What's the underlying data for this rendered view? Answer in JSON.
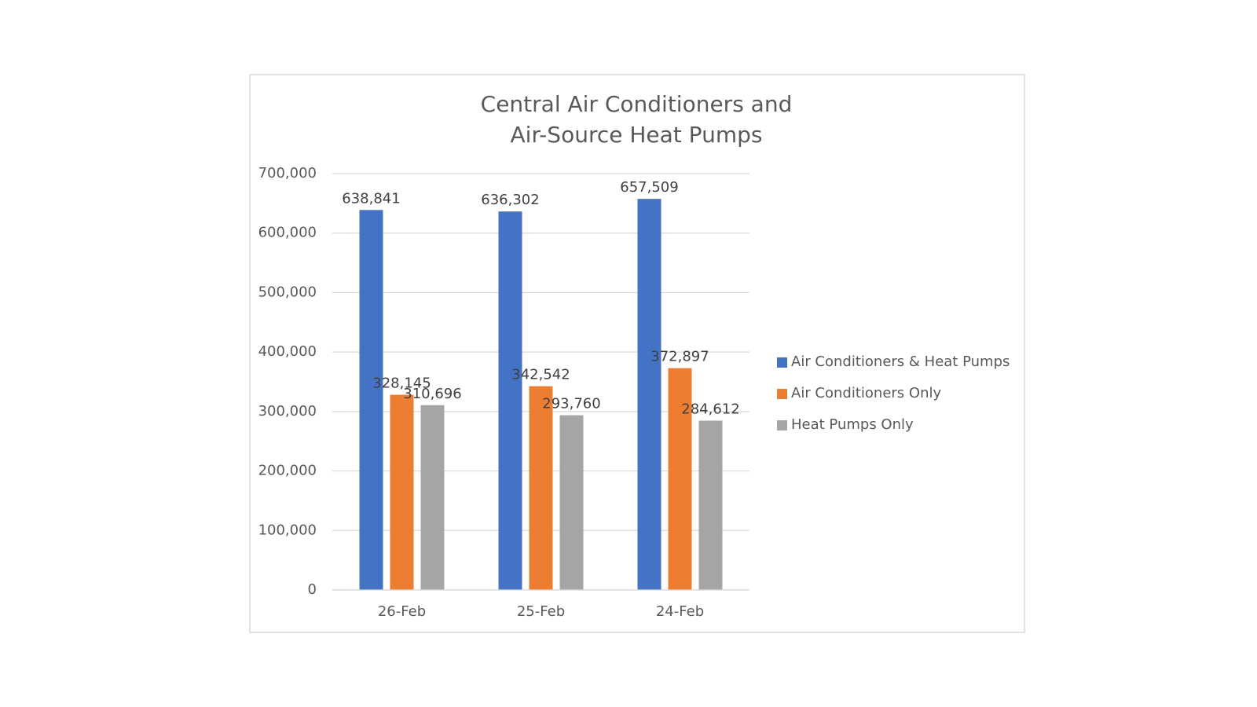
{
  "chart_data": {
    "type": "bar",
    "title": [
      "Central Air Conditioners and",
      "Air-Source Heat Pumps"
    ],
    "categories": [
      "26-Feb",
      "25-Feb",
      "24-Feb"
    ],
    "series": [
      {
        "name": "Air Conditioners & Heat Pumps",
        "color": "#4472c4",
        "values": [
          638841,
          636302,
          657509
        ],
        "value_labels": [
          "638,841",
          "636,302",
          "657,509"
        ]
      },
      {
        "name": "Air Conditioners Only",
        "color": "#ed7d31",
        "values": [
          328145,
          342542,
          372897
        ],
        "value_labels": [
          "328,145",
          "342,542",
          "372,897"
        ]
      },
      {
        "name": "Heat Pumps Only",
        "color": "#a5a5a5",
        "values": [
          310696,
          293760,
          284612
        ],
        "value_labels": [
          "310,696",
          "293,760",
          "284,612"
        ]
      }
    ],
    "ylim": [
      0,
      700000
    ],
    "yticks": [
      0,
      {
        "value": 100000,
        "label": "100,000"
      },
      {
        "value": 200000,
        "label": "200,000"
      },
      {
        "value": 300000,
        "label": "300,000"
      },
      {
        "value": 400000,
        "label": "400,000"
      },
      {
        "value": 500000,
        "label": "500,000"
      },
      {
        "value": 600000,
        "label": "600,000"
      },
      {
        "value": 700000,
        "label": "700,000"
      }
    ],
    "grid": true,
    "legend": "right"
  }
}
